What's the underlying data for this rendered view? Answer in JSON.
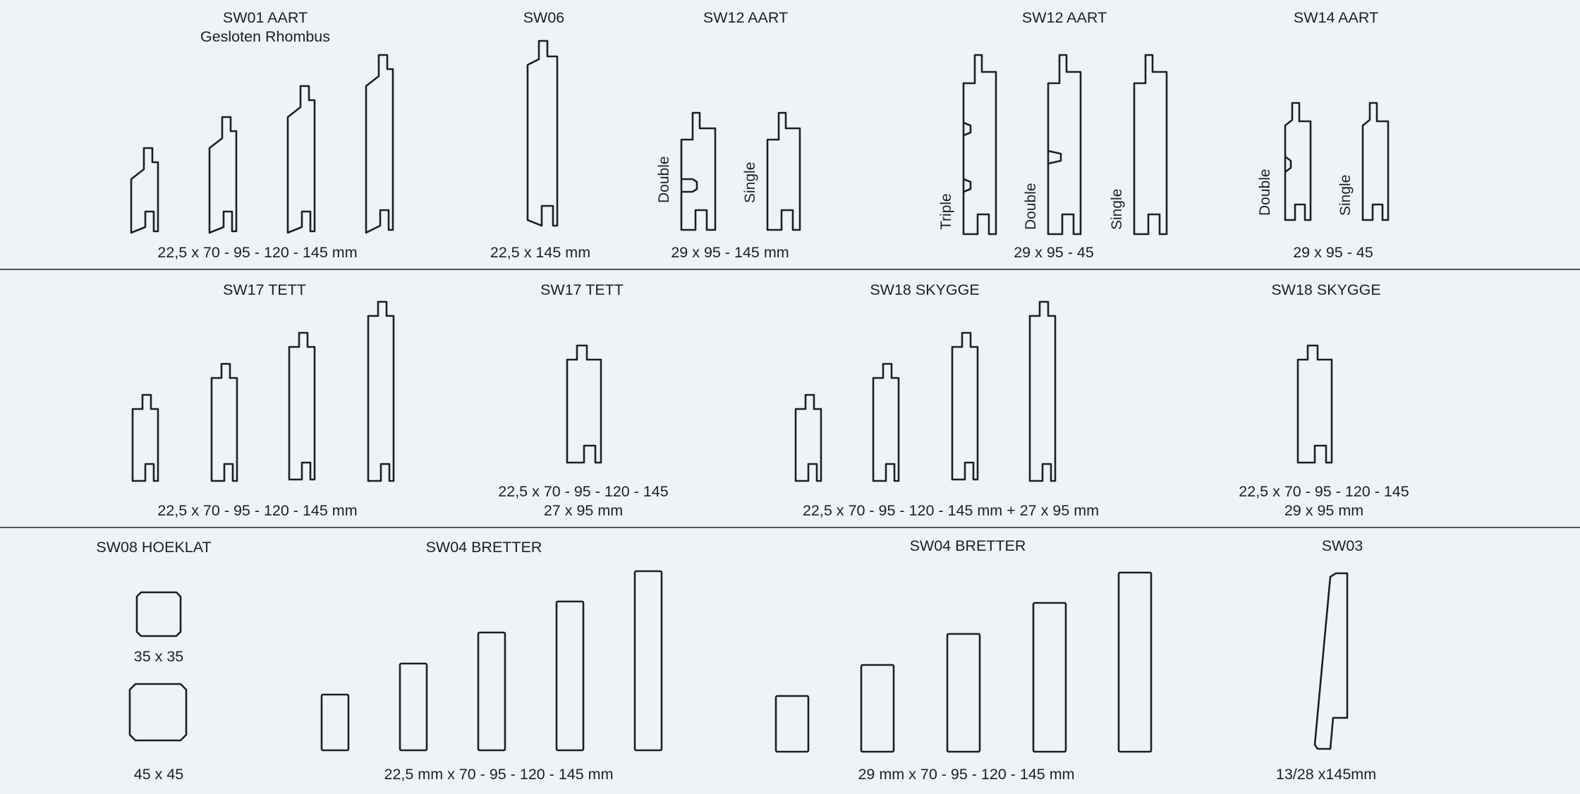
{
  "rows": [
    {
      "profiles": [
        {
          "title": "SW01 AART",
          "subtitle": "Gesloten Rhombus",
          "dimensions": "22,5 x 70 - 95 - 120 - 145 mm"
        },
        {
          "title": "SW06",
          "dimensions": "22,5 x 145 mm"
        },
        {
          "title": "SW12 AART",
          "variants": [
            "Double",
            "Single"
          ],
          "dimensions": "29 x 95 - 145 mm"
        },
        {
          "title": "SW12 AART",
          "variants": [
            "Triple",
            "Double",
            "Single"
          ],
          "dimensions": "29 x 95 - 45"
        },
        {
          "title": "SW14 AART",
          "variants": [
            "Double",
            "Single"
          ],
          "dimensions": "29 x 95 - 45"
        }
      ]
    },
    {
      "profiles": [
        {
          "title": "SW17 TETT",
          "dimensions": "22,5 x 70 - 95 - 120 - 145 mm"
        },
        {
          "title": "SW17 TETT",
          "dimensions": "22,5 x 70 - 95 - 120 - 145",
          "dimensions2": "27 x 95 mm"
        },
        {
          "title": "SW18 SKYGGE",
          "dimensions": "22,5 x 70 - 95 - 120 - 145 mm + 27 x 95 mm"
        },
        {
          "title": "SW18 SKYGGE",
          "dimensions": "22,5 x 70 - 95 - 120 - 145",
          "dimensions2": "29 x 95 mm"
        }
      ]
    },
    {
      "profiles": [
        {
          "title": "SW08 HOEKLAT",
          "sizes": [
            "35 x 35",
            "45 x 45"
          ]
        },
        {
          "title": "SW04 BRETTER",
          "dimensions": "22,5 mm x 70 - 95 - 120 - 145 mm"
        },
        {
          "title": "SW04 BRETTER",
          "dimensions": "29 mm x 70 - 95 - 120 - 145 mm"
        },
        {
          "title": "SW03",
          "dimensions": "13/28 x145mm"
        }
      ]
    }
  ]
}
